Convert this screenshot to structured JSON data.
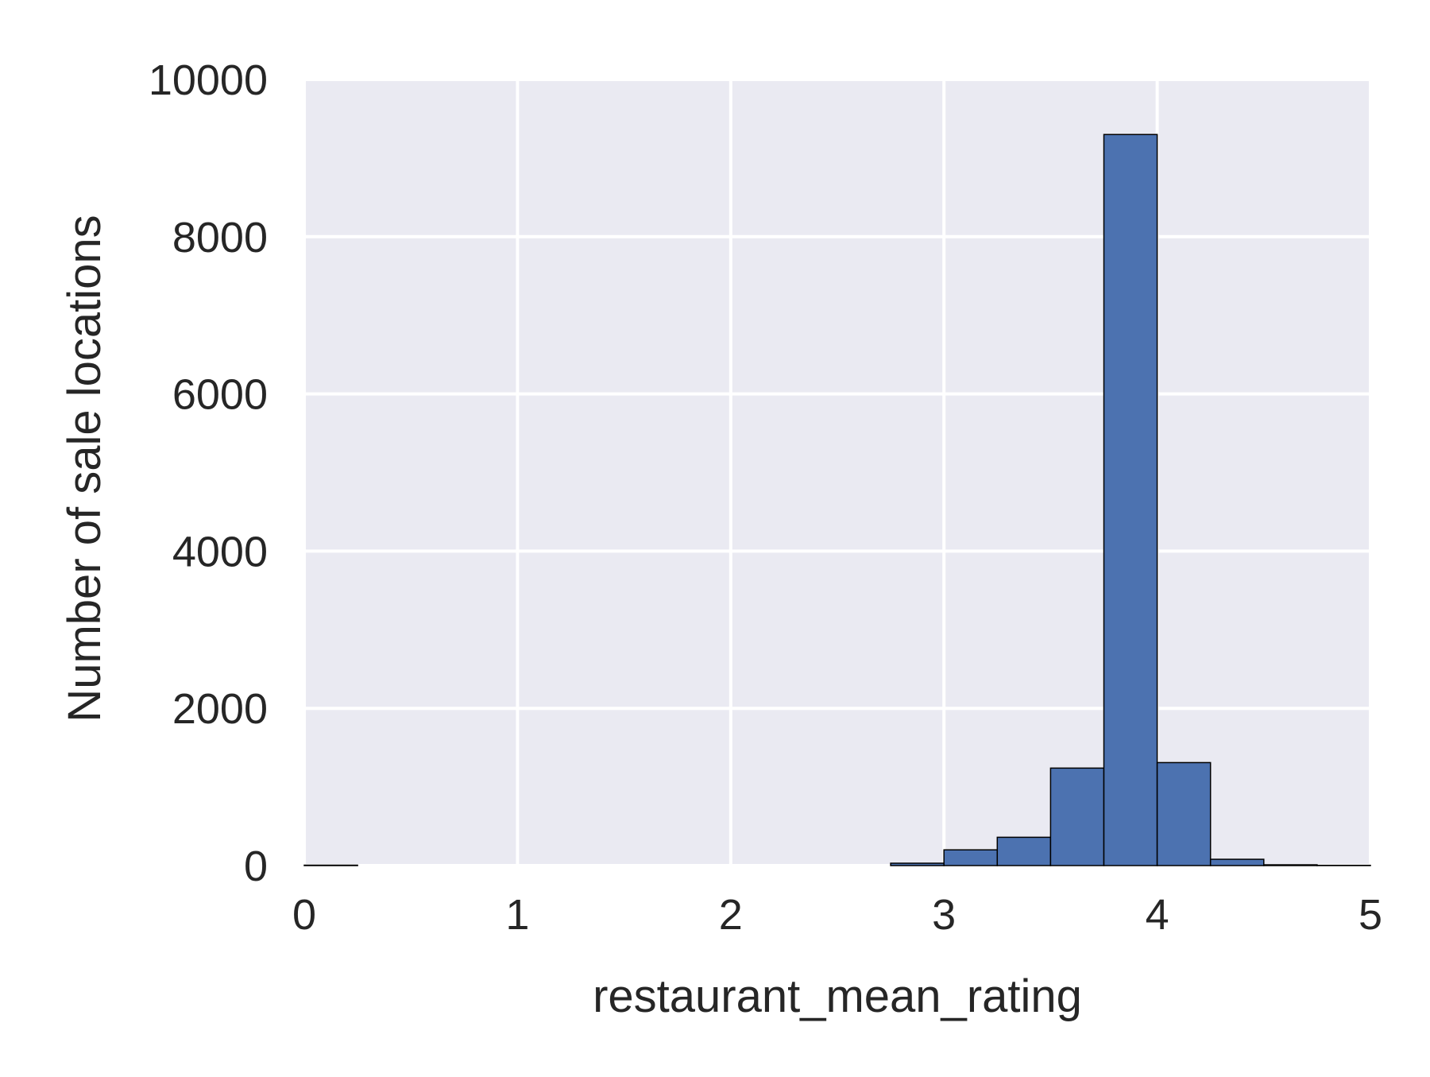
{
  "chart_data": {
    "type": "bar",
    "title": "",
    "xlabel": "restaurant_mean_rating",
    "ylabel": "Number of sale locations",
    "xlim": [
      0,
      5
    ],
    "ylim": [
      0,
      10000
    ],
    "x_ticks": [
      "0",
      "1",
      "2",
      "3",
      "4",
      "5"
    ],
    "y_ticks": [
      "0",
      "2000",
      "4000",
      "6000",
      "8000",
      "10000"
    ],
    "grid": true,
    "legend": "none",
    "bins": [
      {
        "x0": 0.0,
        "x1": 0.25,
        "count": 5
      },
      {
        "x0": 0.25,
        "x1": 0.5,
        "count": 0
      },
      {
        "x0": 0.5,
        "x1": 0.75,
        "count": 0
      },
      {
        "x0": 0.75,
        "x1": 1.0,
        "count": 0
      },
      {
        "x0": 1.0,
        "x1": 1.25,
        "count": 0
      },
      {
        "x0": 1.25,
        "x1": 1.5,
        "count": 0
      },
      {
        "x0": 1.5,
        "x1": 1.75,
        "count": 0
      },
      {
        "x0": 1.75,
        "x1": 2.0,
        "count": 0
      },
      {
        "x0": 2.0,
        "x1": 2.25,
        "count": 0
      },
      {
        "x0": 2.25,
        "x1": 2.5,
        "count": 0
      },
      {
        "x0": 2.5,
        "x1": 2.75,
        "count": 0
      },
      {
        "x0": 2.75,
        "x1": 3.0,
        "count": 30
      },
      {
        "x0": 3.0,
        "x1": 3.25,
        "count": 200
      },
      {
        "x0": 3.25,
        "x1": 3.5,
        "count": 360
      },
      {
        "x0": 3.5,
        "x1": 3.75,
        "count": 1240
      },
      {
        "x0": 3.75,
        "x1": 4.0,
        "count": 9300
      },
      {
        "x0": 4.0,
        "x1": 4.25,
        "count": 1310
      },
      {
        "x0": 4.25,
        "x1": 4.5,
        "count": 80
      },
      {
        "x0": 4.5,
        "x1": 4.75,
        "count": 10
      },
      {
        "x0": 4.75,
        "x1": 5.0,
        "count": 3
      }
    ],
    "colors": {
      "bar_fill": "#4c72b0",
      "bar_edge": "#000000",
      "plot_background": "#eaeaf2",
      "grid": "#ffffff",
      "text": "#262626"
    }
  }
}
